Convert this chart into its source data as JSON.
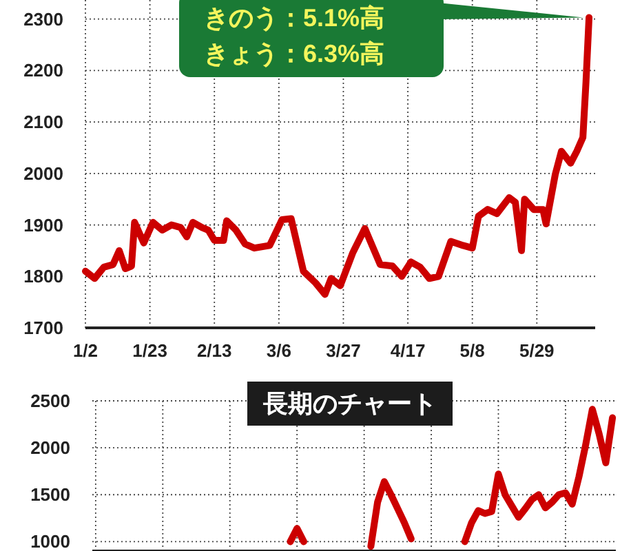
{
  "chart_data": [
    {
      "type": "line",
      "color": "#cc0000",
      "grid": true,
      "annotations": [
        "きのう：5.1%高",
        "きょう：6.3%高"
      ],
      "x": [
        "--01-02",
        "--01-05",
        "--01-08",
        "--01-11",
        "--01-13",
        "--01-15",
        "--01-17",
        "--01-18",
        "--01-21",
        "--01-24",
        "--01-27",
        "--01-30",
        "--02-02",
        "--02-04",
        "--02-06",
        "--02-09",
        "--02-11",
        "--02-13",
        "--02-16",
        "--02-17",
        "--02-20",
        "--02-23",
        "--02-26",
        "--03-03",
        "--03-07",
        "--03-10",
        "--03-14",
        "--03-18",
        "--03-21",
        "--03-23",
        "--03-26",
        "--03-30",
        "--04-03",
        "--04-08",
        "--04-12",
        "--04-15",
        "--04-18",
        "--04-21",
        "--04-24",
        "--04-27",
        "--05-01",
        "--05-05",
        "--05-08",
        "--05-10",
        "--05-13",
        "--05-16",
        "--05-20",
        "--05-22",
        "--05-24",
        "--05-25",
        "--05-28",
        "--05-31",
        "--06-01",
        "--06-04",
        "--06-06",
        "--06-09",
        "--06-11",
        "--06-13",
        "--06-14",
        "--06-15"
      ],
      "values": [
        1810,
        1796,
        1818,
        1823,
        1850,
        1815,
        1820,
        1905,
        1865,
        1905,
        1890,
        1900,
        1895,
        1877,
        1905,
        1895,
        1890,
        1870,
        1870,
        1908,
        1890,
        1863,
        1855,
        1860,
        1910,
        1912,
        1810,
        1787,
        1765,
        1796,
        1782,
        1845,
        1893,
        1823,
        1820,
        1800,
        1828,
        1818,
        1796,
        1800,
        1868,
        1860,
        1855,
        1917,
        1930,
        1922,
        1953,
        1944,
        1850,
        1950,
        1930,
        1930,
        1902,
        1998,
        2043,
        2020,
        2043,
        2070,
        2177,
        2303
      ],
      "xlim": [
        "--01-02",
        "--06-17"
      ],
      "xticks": [
        {
          "value": "--01-02",
          "label": "1/2"
        },
        {
          "value": "--01-23",
          "label": "1/23"
        },
        {
          "value": "--02-13",
          "label": "2/13"
        },
        {
          "value": "--03-06",
          "label": "3/6"
        },
        {
          "value": "--03-27",
          "label": "3/27"
        },
        {
          "value": "--04-17",
          "label": "4/17"
        },
        {
          "value": "--05-08",
          "label": "5/8"
        },
        {
          "value": "--05-29",
          "label": "5/29"
        }
      ],
      "ylim": [
        1700,
        2337
      ],
      "yticks": [
        1700,
        1800,
        1900,
        2000,
        2100,
        2200,
        2300
      ]
    },
    {
      "type": "line",
      "title": "長期のチャート",
      "grid": true,
      "categories": [
        null,
        null,
        null,
        null,
        null,
        null,
        null,
        null,
        null,
        null,
        null,
        null,
        null,
        null,
        null,
        null,
        null,
        null,
        null,
        null,
        null,
        null,
        null,
        null,
        null,
        null,
        null,
        null,
        null,
        null,
        null,
        null,
        null,
        null,
        null,
        null,
        null,
        null,
        null,
        null,
        null,
        null,
        null,
        null,
        null,
        null,
        null,
        null,
        null,
        null,
        null,
        null,
        null,
        null,
        null,
        null,
        null,
        null,
        null,
        null,
        null,
        null,
        null,
        null,
        null,
        null,
        null,
        null,
        null,
        null,
        null,
        null,
        null,
        null,
        null,
        null,
        null,
        null
      ],
      "series": [
        {
          "color": "#cc0000",
          "values": [
            null,
            null,
            null,
            null,
            null,
            null,
            null,
            null,
            null,
            null,
            null,
            null,
            null,
            null,
            null,
            null,
            null,
            null,
            null,
            null,
            null,
            null,
            null,
            null,
            null,
            null,
            null,
            null,
            null,
            1000,
            1140,
            1000,
            null,
            null,
            null,
            null,
            null,
            null,
            null,
            null,
            null,
            950,
            1420,
            1640,
            1500,
            1350,
            1200,
            1030,
            null,
            null,
            null,
            null,
            null,
            null,
            null,
            1000,
            1200,
            1330,
            1300,
            1320,
            1720,
            1500,
            1380,
            1260,
            1350,
            1450,
            1500,
            1360,
            1420,
            1500,
            1520,
            1400,
            1690,
            2030,
            2410,
            2150,
            1840,
            2320
          ]
        }
      ],
      "ylim": [
        900,
        2500
      ],
      "yticks": [
        1000,
        1500,
        2000,
        2500
      ]
    }
  ]
}
